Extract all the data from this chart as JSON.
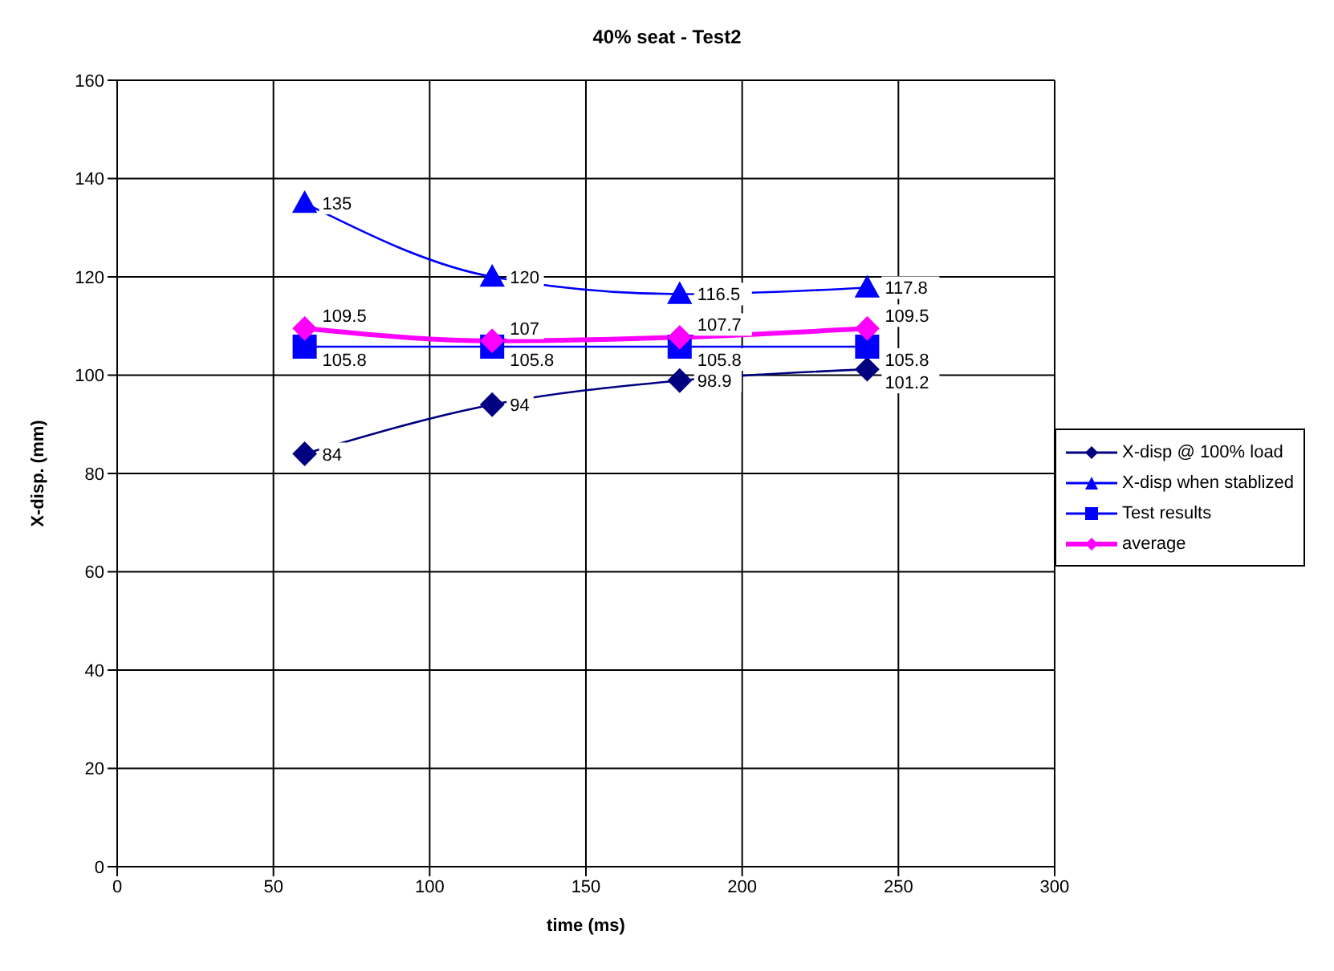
{
  "chart_data": {
    "type": "line",
    "title": "40% seat - Test2",
    "xlabel": "time (ms)",
    "ylabel": "X-disp. (mm)",
    "x": [
      60,
      120,
      180,
      240
    ],
    "series": [
      {
        "name": "X-disp @ 100% load",
        "color": "#000080",
        "values": [
          84,
          94,
          98.9,
          101.2
        ],
        "marker": "diamond"
      },
      {
        "name": "X-disp when stablized",
        "color": "#0000ff",
        "values": [
          135,
          120,
          116.5,
          117.8
        ],
        "marker": "triangle"
      },
      {
        "name": "Test results",
        "color": "#0000ff",
        "values": [
          105.8,
          105.8,
          105.8,
          105.8
        ],
        "marker": "square"
      },
      {
        "name": "average",
        "color": "#ff00ff",
        "values": [
          109.5,
          107,
          107.7,
          109.5
        ],
        "marker": "diamond"
      }
    ],
    "xlim": [
      0,
      300
    ],
    "xticks": [
      0,
      50,
      100,
      150,
      200,
      250,
      300
    ],
    "ylim": [
      0,
      160
    ],
    "yticks": [
      0,
      20,
      40,
      60,
      80,
      100,
      120,
      140,
      160
    ],
    "grid": true,
    "legend": "right",
    "data_labels": true,
    "line_style": "solid"
  }
}
